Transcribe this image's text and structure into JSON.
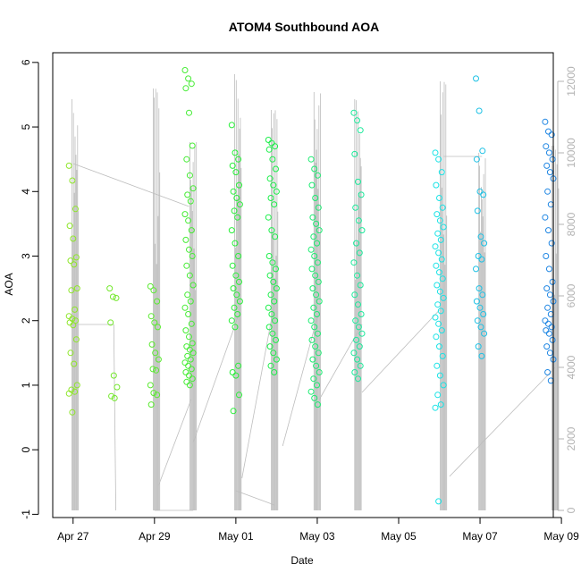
{
  "chart_data": {
    "type": "scatter",
    "title": "ATOM4 Southbound AOA",
    "xlabel": "Date",
    "ylabel": "AOA",
    "x_unit": "days",
    "x_tick_labels": [
      "Apr 27",
      "Apr 29",
      "May 01",
      "May 03",
      "May 05",
      "May 07",
      "May 09"
    ],
    "xlim": [
      -0.5,
      11.8
    ],
    "ylim": [
      -1.05,
      6.15
    ],
    "y_ticks": [
      -1,
      0,
      1,
      2,
      3,
      4,
      5,
      6
    ],
    "y2_ticks": [
      0,
      2000,
      4000,
      6000,
      8000,
      10000,
      12000
    ],
    "y2lim": [
      -200,
      12800
    ],
    "grid": false,
    "legend": "none",
    "colors": {
      "points_start": "#8ee629",
      "points_mid": "#1bf03a",
      "points_cyan": "#1ae3e6",
      "points_end": "#1f86e3",
      "secondary_line": "#bdbdbd",
      "secondary_axis": "#b3b3b3"
    },
    "series": [
      {
        "kind": "points",
        "clusters": [
          {
            "x": 0.0,
            "y": [
              4.4,
              4.17,
              3.73,
              3.47,
              3.27,
              2.98,
              2.93,
              2.87,
              2.5,
              2.47,
              2.17,
              2.07,
              2.03,
              2.0,
              1.97,
              1.93,
              1.71,
              1.5,
              1.33,
              1.0,
              0.93,
              0.9,
              0.87,
              0.58
            ]
          },
          {
            "x": 1.0,
            "y": [
              2.5,
              2.37,
              2.35,
              1.97,
              1.15,
              0.97,
              0.83,
              0.8
            ]
          },
          {
            "x": 2.0,
            "y": [
              2.53,
              2.47,
              2.3,
              2.07,
              1.97,
              1.9,
              1.63,
              1.5,
              1.4,
              1.25,
              1.23,
              1.0,
              0.88,
              0.85,
              0.7
            ]
          },
          {
            "x": 2.85,
            "y": [
              5.88,
              5.75,
              5.67,
              5.6,
              5.22,
              4.71,
              4.5,
              4.25,
              4.05,
              3.95,
              3.85,
              3.65,
              3.55,
              3.4,
              3.25,
              3.1,
              3.0,
              2.85,
              2.7,
              2.55,
              2.4,
              2.3,
              2.2,
              2.1,
              1.95,
              1.85,
              1.75,
              1.65,
              1.6,
              1.55,
              1.5,
              1.45,
              1.4,
              1.35,
              1.3,
              1.25,
              1.2,
              1.15,
              1.1,
              1.05,
              1.0
            ]
          },
          {
            "x": 4.0,
            "y": [
              5.03,
              4.6,
              4.5,
              4.4,
              4.3,
              4.1,
              4.0,
              3.9,
              3.8,
              3.7,
              3.6,
              3.4,
              3.2,
              3.0,
              2.85,
              2.7,
              2.6,
              2.5,
              2.4,
              2.3,
              2.2,
              2.1,
              2.0,
              1.9,
              1.3,
              1.2,
              1.15,
              0.85,
              0.6
            ]
          },
          {
            "x": 4.9,
            "y": [
              4.8,
              4.75,
              4.7,
              4.65,
              4.5,
              4.35,
              4.2,
              4.1,
              4.0,
              3.9,
              3.8,
              3.6,
              3.4,
              3.3,
              3.0,
              2.9,
              2.8,
              2.7,
              2.6,
              2.5,
              2.4,
              2.3,
              2.2,
              2.1,
              2.0,
              1.9,
              1.8,
              1.7,
              1.6,
              1.5,
              1.4,
              1.3,
              1.2
            ]
          },
          {
            "x": 5.95,
            "y": [
              4.5,
              4.35,
              4.25,
              4.1,
              3.9,
              3.75,
              3.6,
              3.5,
              3.4,
              3.3,
              3.2,
              3.1,
              3.0,
              2.9,
              2.8,
              2.7,
              2.6,
              2.5,
              2.4,
              2.3,
              2.2,
              2.1,
              2.0,
              1.9,
              1.8,
              1.7,
              1.6,
              1.5,
              1.4,
              1.3,
              1.2,
              1.1,
              1.0,
              0.9,
              0.8,
              0.7
            ]
          },
          {
            "x": 7.0,
            "y": [
              5.22,
              5.1,
              4.95,
              4.58,
              4.15,
              3.95,
              3.75,
              3.55,
              3.4,
              3.2,
              3.05,
              2.9,
              2.7,
              2.55,
              2.4,
              2.25,
              2.1,
              2.0,
              1.9,
              1.8,
              1.7,
              1.6,
              1.5,
              1.4,
              1.3,
              1.2,
              1.1
            ]
          },
          {
            "x": 9.0,
            "y": [
              4.6,
              4.5,
              4.3,
              4.1,
              3.9,
              3.75,
              3.65,
              3.55,
              3.45,
              3.35,
              3.25,
              3.15,
              3.05,
              2.95,
              2.85,
              2.75,
              2.65,
              2.55,
              2.45,
              2.35,
              2.25,
              2.15,
              2.05,
              1.95,
              1.85,
              1.75,
              1.6,
              1.45,
              1.3,
              1.15,
              1.0,
              0.85,
              0.7,
              0.65,
              -0.8
            ]
          },
          {
            "x": 10.0,
            "y": [
              5.75,
              5.25,
              4.63,
              4.5,
              4.0,
              3.95,
              3.7,
              3.3,
              3.2,
              3.0,
              2.95,
              2.8,
              2.5,
              2.4,
              2.3,
              2.2,
              2.1,
              2.0,
              1.9,
              1.8,
              1.6,
              1.45
            ]
          },
          {
            "x": 11.7,
            "y": [
              5.08,
              4.93,
              4.88,
              4.7,
              4.6,
              4.5,
              4.4,
              4.3,
              4.2,
              4.0,
              3.8,
              3.6,
              3.4,
              3.2,
              3.0,
              2.8,
              2.6,
              2.5,
              2.4,
              2.3,
              2.2,
              2.1,
              2.0,
              1.95,
              1.9,
              1.85,
              1.8,
              1.7,
              1.6,
              1.5,
              1.4,
              1.2,
              1.07
            ]
          }
        ]
      },
      {
        "kind": "secondary-line",
        "axis": "right",
        "bursts": [
          {
            "x": 0.05,
            "top": 11500
          },
          {
            "x": 2.05,
            "top": 11800
          },
          {
            "x": 2.95,
            "top": 10300
          },
          {
            "x": 4.05,
            "top": 12200
          },
          {
            "x": 4.95,
            "top": 11200
          },
          {
            "x": 6.0,
            "top": 11700
          },
          {
            "x": 7.0,
            "top": 11500
          },
          {
            "x": 9.1,
            "top": 12000
          },
          {
            "x": 10.05,
            "top": 10000
          },
          {
            "x": 11.85,
            "top": 10200
          }
        ],
        "connectors": [
          [
            [
              0.0,
              9700
            ],
            [
              2.85,
              8500
            ]
          ],
          [
            [
              0.0,
              5200
            ],
            [
              1.0,
              5200
            ]
          ],
          [
            [
              1.0,
              5200
            ],
            [
              1.05,
              0
            ]
          ],
          [
            [
              2.1,
              700
            ],
            [
              2.9,
              3100
            ]
          ],
          [
            [
              2.0,
              0
            ],
            [
              2.95,
              0
            ]
          ],
          [
            [
              2.95,
              1900
            ],
            [
              4.05,
              5400
            ]
          ],
          [
            [
              4.0,
              550
            ],
            [
              4.95,
              150
            ]
          ],
          [
            [
              4.15,
              900
            ],
            [
              4.95,
              5800
            ]
          ],
          [
            [
              5.15,
              1800
            ],
            [
              6.05,
              5600
            ]
          ],
          [
            [
              6.05,
              3100
            ],
            [
              7.1,
              5200
            ]
          ],
          [
            [
              7.1,
              3300
            ],
            [
              9.0,
              5600
            ]
          ],
          [
            [
              9.1,
              9900
            ],
            [
              10.05,
              9900
            ]
          ],
          [
            [
              9.25,
              950
            ],
            [
              11.85,
              4000
            ]
          ]
        ]
      }
    ]
  }
}
